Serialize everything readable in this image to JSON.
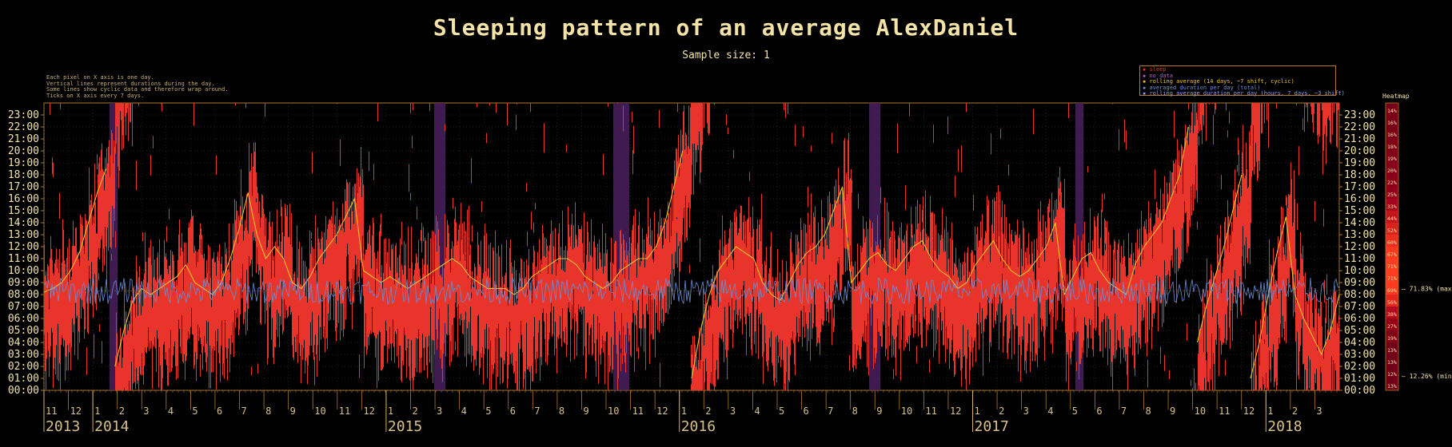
{
  "chart_data": {
    "type": "line",
    "title": "Sleeping pattern of an average AlexDaniel",
    "subtitle": "Sample size: 1",
    "notes": [
      "Each pixel on X axis is one day.",
      "Vertical lines represent durations during the day.",
      "Some lines show cyclic data and therefore wrap around.",
      "Ticks on X axis every 7 days."
    ],
    "legend": [
      {
        "label": "sleep",
        "color": "#e8342a"
      },
      {
        "label": "no data",
        "color": "#7b3fa0"
      },
      {
        "label": "rolling average (14 days, ~7 shift, cyclic)",
        "color": "#f0c030"
      },
      {
        "label": "averaged duration per day (total)",
        "color": "#6a8fd8"
      },
      {
        "label": "rolling average duration per day (hours, 7 days, ~3 shift)",
        "color": "#8aa0ff"
      }
    ],
    "y_ticks": [
      "00:00",
      "01:00",
      "02:00",
      "03:00",
      "04:00",
      "05:00",
      "06:00",
      "07:00",
      "08:00",
      "09:00",
      "10:00",
      "11:00",
      "12:00",
      "13:00",
      "14:00",
      "15:00",
      "16:00",
      "17:00",
      "18:00",
      "19:00",
      "20:00",
      "21:00",
      "22:00",
      "23:00"
    ],
    "ylim": [
      0,
      24
    ],
    "years": [
      {
        "label": "2013",
        "month_index": 0
      },
      {
        "label": "2014",
        "month_index": 2
      },
      {
        "label": "2015",
        "month_index": 14
      },
      {
        "label": "2016",
        "month_index": 26
      },
      {
        "label": "2017",
        "month_index": 38
      },
      {
        "label": "2018",
        "month_index": 50
      }
    ],
    "months": [
      "11",
      "12",
      "1",
      "2",
      "3",
      "4",
      "5",
      "6",
      "7",
      "8",
      "9",
      "10",
      "11",
      "12",
      "1",
      "2",
      "3",
      "4",
      "5",
      "6",
      "7",
      "8",
      "9",
      "10",
      "11",
      "12",
      "1",
      "2",
      "3",
      "4",
      "5",
      "6",
      "7",
      "8",
      "9",
      "10",
      "11",
      "12",
      "1",
      "2",
      "3",
      "4",
      "5",
      "6",
      "7",
      "8",
      "9",
      "10",
      "11",
      "12",
      "1",
      "2",
      "3"
    ],
    "rolling_average_hours": [
      8.2,
      8.5,
      9.0,
      10.0,
      11.5,
      14.0,
      16.5,
      18.5,
      2.0,
      5.0,
      7.5,
      8.5,
      8.0,
      8.5,
      9.0,
      9.5,
      10.5,
      9.0,
      8.5,
      8.0,
      9.0,
      11.0,
      13.5,
      16.5,
      13.0,
      11.0,
      12.0,
      11.0,
      9.0,
      8.5,
      9.5,
      11.0,
      12.0,
      13.0,
      14.5,
      16.0,
      10.0,
      9.5,
      9.0,
      9.5,
      9.0,
      8.5,
      9.0,
      9.5,
      10.0,
      10.5,
      11.0,
      10.5,
      9.5,
      9.0,
      8.5,
      8.5,
      8.5,
      8.0,
      8.5,
      9.5,
      10.0,
      10.5,
      11.0,
      11.0,
      10.5,
      9.5,
      9.0,
      8.5,
      9.0,
      10.0,
      10.5,
      11.0,
      11.0,
      12.0,
      14.0,
      17.0,
      20.0,
      1.0,
      5.0,
      8.0,
      10.0,
      11.0,
      12.0,
      11.5,
      11.0,
      9.0,
      8.0,
      7.5,
      9.0,
      10.5,
      11.5,
      12.0,
      13.0,
      15.0,
      17.0,
      9.0,
      10.0,
      11.0,
      11.5,
      10.5,
      10.0,
      11.0,
      12.0,
      12.5,
      11.0,
      10.0,
      9.5,
      8.5,
      9.0,
      10.5,
      11.5,
      12.5,
      11.0,
      10.0,
      9.5,
      10.0,
      11.0,
      12.0,
      14.0,
      8.0,
      9.5,
      11.0,
      11.5,
      10.0,
      9.0,
      8.5,
      8.0,
      10.5,
      12.0,
      13.0,
      14.0,
      16.0,
      18.0,
      22.0,
      4.0,
      7.0,
      9.5,
      12.0,
      15.0,
      18.0,
      1.0,
      4.0,
      8.0,
      11.5,
      14.5,
      8.0,
      6.0,
      4.5,
      3.0,
      5.0,
      8.0
    ],
    "duration_line_hours": 8.3,
    "heatmap": {
      "label": "Heatmap",
      "ticks": [
        "13%",
        "12%",
        "13%",
        "13%",
        "19%",
        "27%",
        "38%",
        "56%",
        "69%",
        "71%",
        "71%",
        "67%",
        "60%",
        "52%",
        "44%",
        "33%",
        "25%",
        "22%",
        "20%",
        "19%",
        "18%",
        "16%",
        "16%",
        "14%"
      ],
      "max_label": "71.83% (max)",
      "min_label": "12.26% (min)",
      "max_hour": 8.5,
      "min_hour": 1.2
    }
  }
}
